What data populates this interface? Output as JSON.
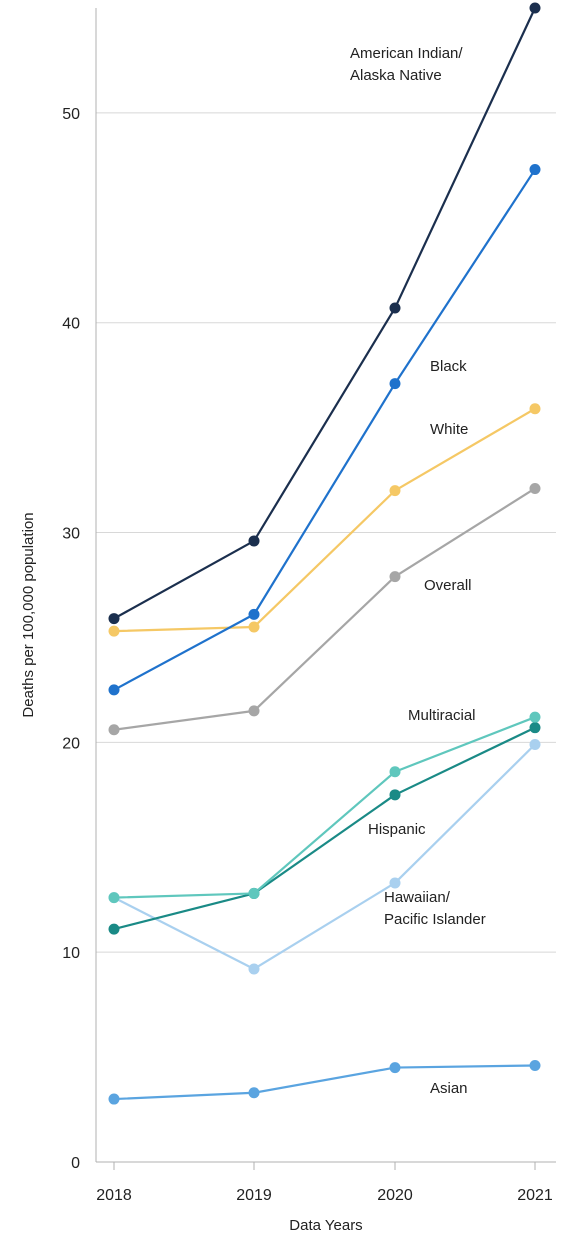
{
  "chart_data": {
    "type": "line",
    "xlabel": "Data Years",
    "ylabel": "Deaths per 100,000 population",
    "x": [
      "2018",
      "2019",
      "2020",
      "2021"
    ],
    "ylim": [
      0,
      55
    ],
    "yticks": [
      0,
      10,
      20,
      30,
      40,
      50
    ],
    "grid": true,
    "legend": "direct labels on lines",
    "series": [
      {
        "name": "American Indian/ Alaska Native",
        "label_lines": [
          "American Indian/",
          "Alaska Native"
        ],
        "color": "#1b2f4e",
        "values": [
          25.9,
          29.6,
          40.7,
          55.0
        ]
      },
      {
        "name": "Black",
        "label_lines": [
          "Black"
        ],
        "color": "#1f72cc",
        "values": [
          22.5,
          26.1,
          37.1,
          47.3
        ]
      },
      {
        "name": "White",
        "label_lines": [
          "White"
        ],
        "color": "#f5c865",
        "values": [
          25.3,
          25.5,
          32.0,
          35.9
        ]
      },
      {
        "name": "Overall",
        "label_lines": [
          "Overall"
        ],
        "color": "#a6a6a6",
        "values": [
          20.6,
          21.5,
          27.9,
          32.1
        ]
      },
      {
        "name": "Multiracial",
        "label_lines": [
          "Multiracial"
        ],
        "color": "#5fc7bd",
        "values": [
          12.6,
          12.8,
          18.6,
          21.2
        ]
      },
      {
        "name": "Hispanic",
        "label_lines": [
          "Hispanic"
        ],
        "color": "#1a8a86",
        "values": [
          11.1,
          12.8,
          17.5,
          20.7
        ]
      },
      {
        "name": "Hawaiian/ Pacific Islander",
        "label_lines": [
          "Hawaiian/",
          "Pacific Islander"
        ],
        "color": "#a9d0ef",
        "values": [
          12.6,
          9.2,
          13.3,
          19.9
        ]
      },
      {
        "name": "Asian",
        "label_lines": [
          "Asian"
        ],
        "color": "#5aa4e0",
        "values": [
          3.0,
          3.3,
          4.5,
          4.6
        ]
      }
    ]
  }
}
